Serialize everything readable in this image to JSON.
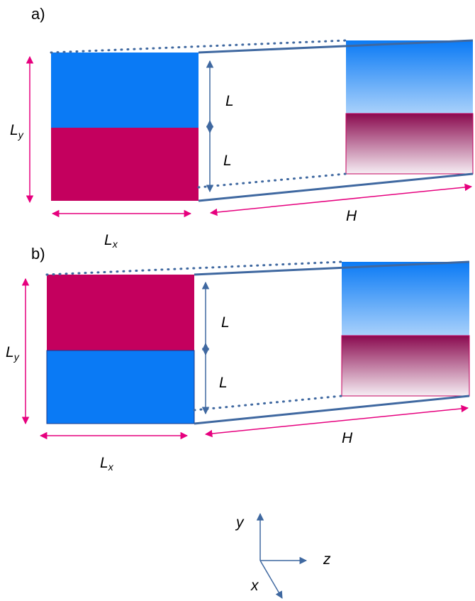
{
  "panels": [
    {
      "label": "a)",
      "layers": [
        {
          "region": "top",
          "color": "blue"
        },
        {
          "region": "bottom",
          "color": "magenta"
        }
      ],
      "symbols": {
        "Ly": {
          "base": "L",
          "sub": "y"
        },
        "Lx": {
          "base": "L",
          "sub": "x"
        },
        "L_upper": "L",
        "L_lower": "L",
        "H": "H"
      }
    },
    {
      "label": "b)",
      "layers": [
        {
          "region": "top",
          "color": "magenta"
        },
        {
          "region": "bottom",
          "color": "blue"
        }
      ],
      "symbols": {
        "Ly": {
          "base": "L",
          "sub": "y"
        },
        "Lx": {
          "base": "L",
          "sub": "x"
        },
        "L_upper": "L",
        "L_lower": "L",
        "H": "H"
      }
    }
  ],
  "axes": {
    "y": "y",
    "z": "z",
    "x": "x"
  },
  "colors": {
    "blue": "#0a7af5",
    "magenta": "#c4005e",
    "outline": "#3f68a0",
    "dimension": "#e6007e",
    "gradient_blue_top": "#0a7af5",
    "gradient_blue_bottom": "#a9d1fb",
    "gradient_magenta_top": "#8a0a4f",
    "gradient_magenta_bottom": "#f6eef4"
  }
}
